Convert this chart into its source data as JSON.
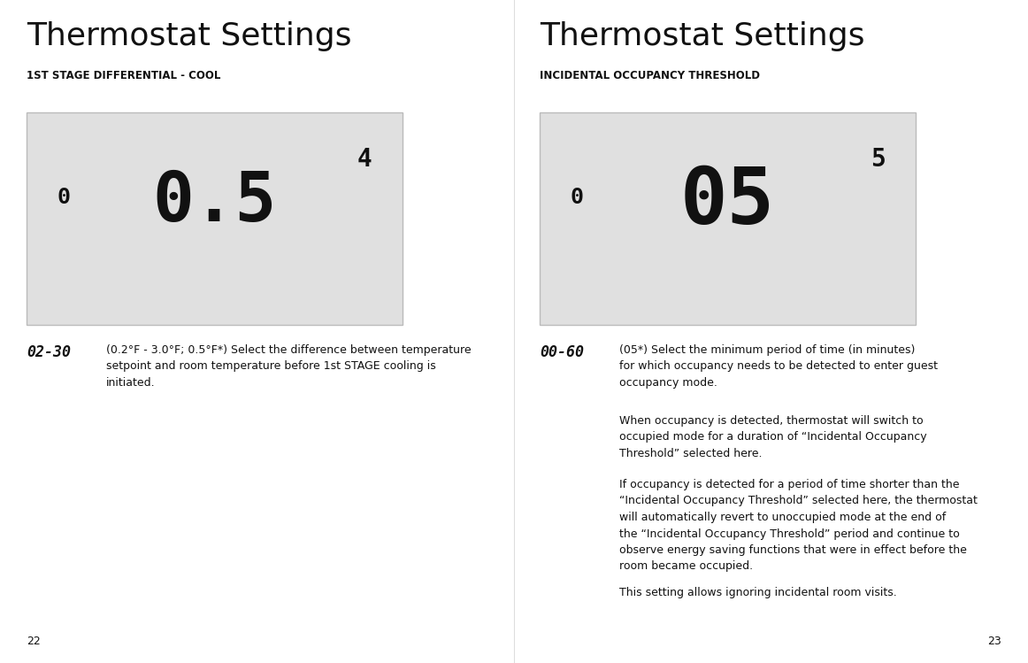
{
  "bg_color": "#ffffff",
  "left_title": "Thermostat Settings",
  "right_title": "Thermostat Settings",
  "left_subtitle": "1ST STAGE DIFFERENTIAL - COOL",
  "right_subtitle": "INCIDENTAL OCCUPANCY THRESHOLD",
  "display_bg": "#e0e0e0",
  "left_display_small": "0",
  "left_display_large": "0.5",
  "left_display_super": "4",
  "right_display_small": "0",
  "right_display_large": "05",
  "right_display_super": "5",
  "left_range_label": "02-30",
  "right_range_label": "00-60",
  "left_desc": "(0.2°F - 3.0°F; 0.5°F*) Select the difference between temperature\nsetpoint and room temperature before 1st STAGE cooling is\ninitiated.",
  "right_desc_para1": "(05*) Select the minimum period of time (in minutes)\nfor which occupancy needs to be detected to enter guest\noccupancy mode.",
  "right_desc_para2": "When occupancy is detected, thermostat will switch to\noccupied mode for a duration of “Incidental Occupancy\nThreshold” selected here.",
  "right_desc_para3": "If occupancy is detected for a period of time shorter than the\n“Incidental Occupancy Threshold” selected here, the thermostat\nwill automatically revert to unoccupied mode at the end of\nthe “Incidental Occupancy Threshold” period and continue to\nobserve energy saving functions that were in effect before the\nroom became occupied.",
  "right_desc_para4": "This setting allows ignoring incidental room visits.",
  "page_left": "22",
  "page_right": "23"
}
